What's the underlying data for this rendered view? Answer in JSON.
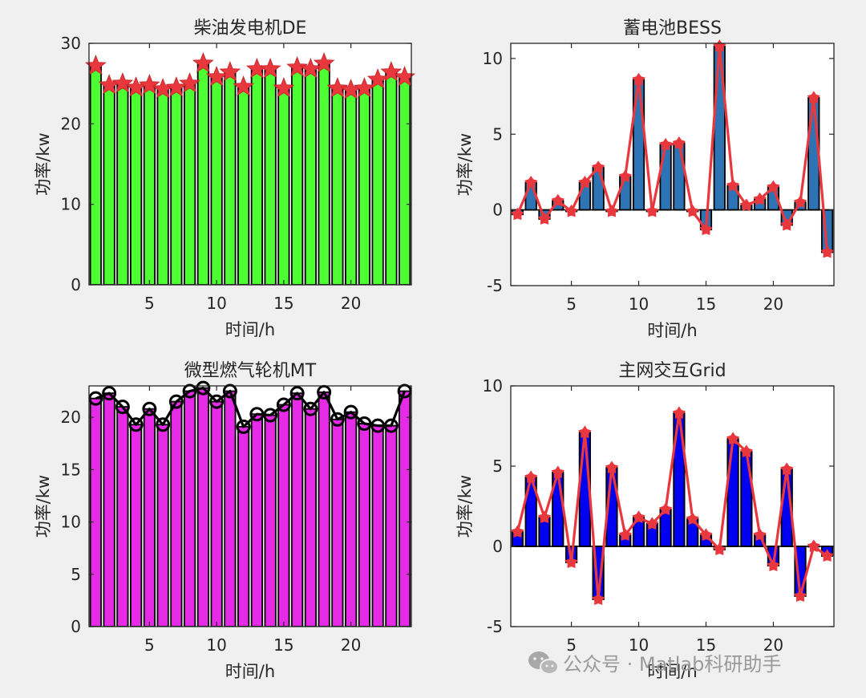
{
  "watermark": {
    "text": "公众号 · Matlab科研助手",
    "icon": "wechat-icon"
  },
  "chart_data": [
    {
      "id": "de",
      "type": "bar",
      "title": "柴油发电机DE",
      "xlabel": "时间/h",
      "ylabel": "功率/kw",
      "x": [
        1,
        2,
        3,
        4,
        5,
        6,
        7,
        8,
        9,
        10,
        11,
        12,
        13,
        14,
        15,
        16,
        17,
        18,
        19,
        20,
        21,
        22,
        23,
        24
      ],
      "values": [
        27.2,
        24.8,
        25.0,
        24.5,
        24.8,
        24.3,
        24.5,
        25.0,
        27.5,
        25.8,
        26.4,
        24.6,
        26.8,
        26.8,
        24.4,
        27.0,
        26.8,
        27.5,
        24.4,
        24.2,
        24.4,
        25.5,
        26.4,
        25.8
      ],
      "bar_color": "#4dff33",
      "overlay": {
        "style": "markers",
        "marker": "star",
        "color": "#e8383d"
      },
      "xlim": [
        0.5,
        24.5
      ],
      "ylim": [
        0,
        30
      ],
      "xticks": [
        5,
        10,
        15,
        20
      ],
      "yticks": [
        0,
        10,
        20,
        30
      ],
      "grid": false
    },
    {
      "id": "bess",
      "type": "bar",
      "title": "蓄电池BESS",
      "xlabel": "时间/h",
      "ylabel": "功率/kw",
      "x": [
        1,
        2,
        3,
        4,
        5,
        6,
        7,
        8,
        9,
        10,
        11,
        12,
        13,
        14,
        15,
        16,
        17,
        18,
        19,
        20,
        21,
        22,
        23,
        24
      ],
      "values": [
        -0.3,
        1.8,
        -0.6,
        0.6,
        -0.1,
        1.8,
        2.8,
        -0.1,
        2.2,
        8.6,
        -0.1,
        4.3,
        4.4,
        -0.1,
        -1.3,
        10.8,
        1.6,
        0.3,
        0.7,
        1.5,
        -1.0,
        0.5,
        7.4,
        -2.8
      ],
      "bar_color": "#2e74b5",
      "overlay": {
        "style": "line-markers",
        "marker": "asterisk",
        "color": "#e8383d"
      },
      "xlim": [
        0.5,
        24.5
      ],
      "ylim": [
        -5,
        11
      ],
      "xticks": [
        5,
        10,
        15,
        20
      ],
      "yticks": [
        -5,
        0,
        5,
        10
      ],
      "grid": false
    },
    {
      "id": "mt",
      "type": "bar",
      "title": "微型燃气轮机MT",
      "xlabel": "时间/h",
      "ylabel": "功率/kw",
      "x": [
        1,
        2,
        3,
        4,
        5,
        6,
        7,
        8,
        9,
        10,
        11,
        12,
        13,
        14,
        15,
        16,
        17,
        18,
        19,
        20,
        21,
        22,
        23,
        24
      ],
      "values": [
        21.8,
        22.3,
        21.0,
        19.3,
        20.8,
        19.3,
        21.5,
        22.5,
        22.8,
        21.5,
        22.5,
        19.1,
        20.3,
        20.2,
        21.2,
        22.3,
        20.8,
        22.4,
        19.8,
        20.5,
        19.4,
        19.2,
        19.2,
        22.5
      ],
      "bar_color": "#e52be5",
      "overlay": {
        "style": "line-markers",
        "marker": "circle",
        "color": "#000000"
      },
      "xlim": [
        0.5,
        24.5
      ],
      "ylim": [
        0,
        23
      ],
      "xticks": [
        5,
        10,
        15,
        20
      ],
      "yticks": [
        0,
        5,
        10,
        15,
        20
      ],
      "grid": false
    },
    {
      "id": "grid",
      "type": "bar",
      "title": "主网交互Grid",
      "xlabel": "时间/h",
      "ylabel": "功率/kw",
      "x": [
        1,
        2,
        3,
        4,
        5,
        6,
        7,
        8,
        9,
        10,
        11,
        12,
        13,
        14,
        15,
        16,
        17,
        18,
        19,
        20,
        21,
        22,
        23,
        24
      ],
      "values": [
        0.9,
        4.3,
        1.8,
        4.6,
        -1.0,
        7.1,
        -3.3,
        4.9,
        0.7,
        1.8,
        1.4,
        2.3,
        8.3,
        1.7,
        0.7,
        -0.2,
        6.7,
        5.9,
        0.7,
        -1.2,
        4.8,
        -3.1,
        0.0,
        -0.6
      ],
      "bar_color": "#0000f0",
      "overlay": {
        "style": "line-markers",
        "marker": "asterisk",
        "color": "#e8383d"
      },
      "xlim": [
        0.5,
        24.5
      ],
      "ylim": [
        -5,
        10
      ],
      "xticks": [
        5,
        10,
        15,
        20
      ],
      "yticks": [
        -5,
        0,
        5,
        10
      ],
      "grid": false
    }
  ]
}
